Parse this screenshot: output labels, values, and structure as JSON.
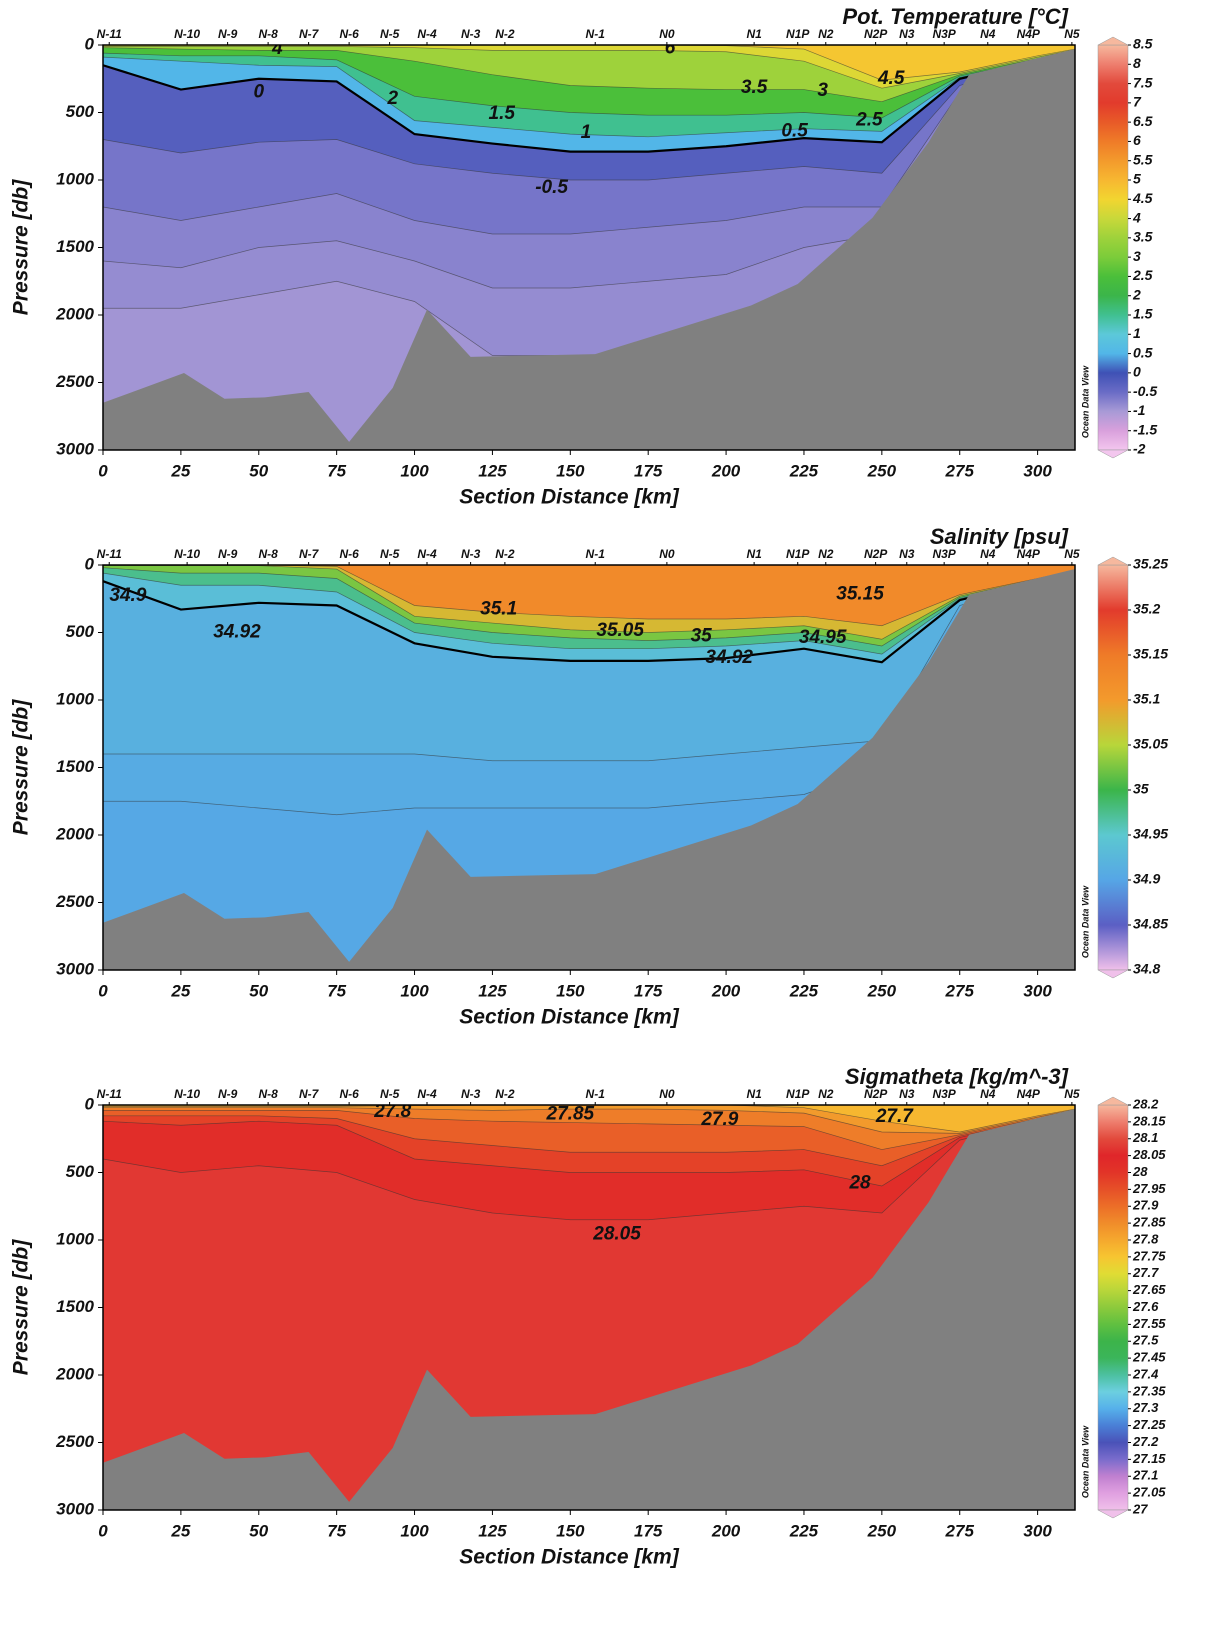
{
  "chart_data": [
    {
      "type": "section",
      "title": "Pot. Temperature [°C]",
      "x_label": "Section Distance [km]",
      "y_label": "Pressure [db]",
      "watermark": "Ocean Data View",
      "xlim": [
        0,
        312
      ],
      "xticks": [
        0,
        25,
        50,
        75,
        100,
        125,
        150,
        175,
        200,
        225,
        250,
        275,
        300
      ],
      "ylim": [
        0,
        3000
      ],
      "yticks": [
        0,
        500,
        1000,
        1500,
        2000,
        2500,
        3000
      ],
      "y_reversed": true,
      "zlim": [
        -2,
        8.5
      ],
      "zticks": [
        8.5,
        8,
        7.5,
        7,
        6.5,
        6,
        5.5,
        5,
        4.5,
        4,
        3.5,
        3,
        2.5,
        2,
        1.5,
        1,
        0.5,
        0,
        -0.5,
        -1,
        -1.5,
        -2
      ],
      "colormap": [
        "#f3c6ee",
        "#d9a0dc",
        "#a89ad6",
        "#6a6cc6",
        "#3f51b5",
        "#52b6e8",
        "#5cc8d9",
        "#40c090",
        "#3bb54a",
        "#4bbf3a",
        "#7ccc3a",
        "#9ed23b",
        "#c8d83a",
        "#f2d530",
        "#f7b731",
        "#f39a2c",
        "#ef7b28",
        "#e85a28",
        "#e23b2c",
        "#e24a3c",
        "#ee7e6e",
        "#f6b89e"
      ],
      "stations": {
        "names": [
          "N-11",
          "N-10",
          "N-9",
          "N-8",
          "N-7",
          "N-6",
          "N-5",
          "N-4",
          "N-3",
          "N-2",
          "N-1",
          "N0",
          "N1",
          "N1P",
          "N2",
          "N2P",
          "N3",
          "N3P",
          "N4",
          "N4P",
          "N5"
        ],
        "km": [
          2,
          27,
          40,
          53,
          66,
          79,
          92,
          104,
          118,
          129,
          158,
          181,
          209,
          223,
          232,
          248,
          258,
          270,
          284,
          297,
          311
        ]
      },
      "x_grid": [
        0,
        25,
        50,
        75,
        100,
        125,
        150,
        175,
        200,
        225,
        250,
        275,
        300,
        312
      ],
      "layers": [
        {
          "level": 4.5,
          "depth": [
            0,
            0,
            0,
            0,
            0,
            0,
            0,
            0,
            5,
            30,
            260,
            200,
            80,
            30
          ]
        },
        {
          "level": 4,
          "depth": [
            10,
            10,
            10,
            10,
            20,
            40,
            40,
            40,
            50,
            120,
            320,
            210,
            90,
            35
          ]
        },
        {
          "level": 3,
          "depth": [
            20,
            30,
            40,
            40,
            120,
            220,
            300,
            320,
            330,
            330,
            420,
            220,
            100,
            40
          ]
        },
        {
          "level": 2,
          "depth": [
            60,
            80,
            80,
            110,
            380,
            450,
            500,
            520,
            520,
            500,
            540,
            230,
            110,
            45
          ]
        },
        {
          "level": 1,
          "depth": [
            90,
            120,
            150,
            160,
            560,
            610,
            660,
            680,
            650,
            620,
            640,
            240,
            115,
            48
          ]
        },
        {
          "level": 0,
          "depth": [
            150,
            330,
            250,
            270,
            660,
            730,
            790,
            790,
            750,
            690,
            720,
            250,
            120,
            50
          ]
        },
        {
          "level": -0.5,
          "depth": [
            700,
            800,
            720,
            700,
            880,
            950,
            1000,
            1000,
            950,
            900,
            950,
            300,
            130,
            55
          ]
        },
        {
          "level": -0.7,
          "depth": [
            1200,
            1300,
            1200,
            1100,
            1300,
            1400,
            1400,
            1350,
            1300,
            1200,
            1200,
            350,
            140,
            60
          ]
        },
        {
          "level": -0.8,
          "depth": [
            1600,
            1650,
            1500,
            1450,
            1600,
            1800,
            1800,
            1750,
            1700,
            1500,
            1400,
            400,
            150,
            65
          ]
        },
        {
          "level": -0.9,
          "depth": [
            1950,
            1950,
            1850,
            1750,
            1900,
            2300,
            2300,
            2300,
            2200,
            2000,
            1600,
            450,
            160,
            70
          ]
        }
      ],
      "bold_levels": [
        0
      ],
      "contour_labels": [
        {
          "value": 0,
          "x": 50,
          "p": 350
        },
        {
          "value": 2,
          "x": 93,
          "p": 400
        },
        {
          "value": 1.5,
          "x": 128,
          "p": 510
        },
        {
          "value": 1,
          "x": 155,
          "p": 650
        },
        {
          "value": 0.5,
          "x": 222,
          "p": 640
        },
        {
          "value": 2.5,
          "x": 246,
          "p": 560
        },
        {
          "value": 3,
          "x": 231,
          "p": 340
        },
        {
          "value": 3.5,
          "x": 209,
          "p": 320
        },
        {
          "value": 4.5,
          "x": 253,
          "p": 250
        },
        {
          "value": -0.5,
          "x": 144,
          "p": 1060
        },
        {
          "value": 4,
          "x": 56,
          "p": 30
        },
        {
          "value": 6,
          "x": 182,
          "p": 25
        }
      ],
      "bottom": {
        "km": [
          0,
          26,
          39,
          52,
          66,
          79,
          93,
          104,
          118,
          158,
          208,
          223,
          247,
          265,
          278,
          312
        ],
        "pressure": [
          2650,
          2430,
          2620,
          2610,
          2570,
          2940,
          2540,
          1960,
          2310,
          2290,
          1930,
          1770,
          1280,
          720,
          220,
          30
        ]
      }
    },
    {
      "type": "section",
      "title": "Salinity [psu]",
      "x_label": "Section Distance [km]",
      "y_label": "Pressure [db]",
      "watermark": "Ocean Data View",
      "xlim": [
        0,
        312
      ],
      "xticks": [
        0,
        25,
        50,
        75,
        100,
        125,
        150,
        175,
        200,
        225,
        250,
        275,
        300
      ],
      "ylim": [
        0,
        3000
      ],
      "yticks": [
        0,
        500,
        1000,
        1500,
        2000,
        2500,
        3000
      ],
      "y_reversed": true,
      "zlim": [
        34.8,
        35.25
      ],
      "zticks": [
        35.25,
        35.2,
        35.15,
        35.1,
        35.05,
        35,
        34.95,
        34.9,
        34.85,
        34.8
      ],
      "colormap": [
        "#f0c0ea",
        "#5b5fc4",
        "#56a6e6",
        "#5cc8d0",
        "#3bb54a",
        "#b8d63a",
        "#f39a2c",
        "#ef7b28",
        "#e23b2c",
        "#f6b89e"
      ],
      "stations": {
        "names": [
          "N-11",
          "N-10",
          "N-9",
          "N-8",
          "N-7",
          "N-6",
          "N-5",
          "N-4",
          "N-3",
          "N-2",
          "N-1",
          "N0",
          "N1",
          "N1P",
          "N2",
          "N2P",
          "N3",
          "N3P",
          "N4",
          "N4P",
          "N5"
        ],
        "km": [
          2,
          27,
          40,
          53,
          66,
          79,
          92,
          104,
          118,
          129,
          158,
          181,
          209,
          223,
          232,
          248,
          258,
          270,
          284,
          297,
          311
        ]
      },
      "x_grid": [
        0,
        25,
        50,
        75,
        100,
        125,
        150,
        175,
        200,
        225,
        250,
        275,
        300,
        312
      ],
      "layers": [
        {
          "level": 35.1,
          "depth": [
            0,
            0,
            0,
            10,
            300,
            350,
            380,
            400,
            400,
            380,
            450,
            220,
            100,
            40
          ]
        },
        {
          "level": 35.05,
          "depth": [
            5,
            5,
            5,
            30,
            380,
            430,
            480,
            500,
            480,
            450,
            550,
            230,
            105,
            42
          ]
        },
        {
          "level": 35,
          "depth": [
            20,
            60,
            60,
            100,
            430,
            500,
            540,
            560,
            540,
            500,
            600,
            240,
            110,
            44
          ]
        },
        {
          "level": 34.95,
          "depth": [
            60,
            150,
            150,
            200,
            500,
            580,
            620,
            620,
            600,
            560,
            660,
            250,
            115,
            46
          ]
        },
        {
          "level": 34.92,
          "depth": [
            120,
            330,
            280,
            300,
            580,
            680,
            710,
            710,
            690,
            620,
            720,
            260,
            120,
            48
          ]
        },
        {
          "level": 34.91,
          "depth": [
            1400,
            1400,
            1400,
            1400,
            1400,
            1450,
            1450,
            1450,
            1400,
            1350,
            1300,
            300,
            130,
            50
          ]
        },
        {
          "level": 34.905,
          "depth": [
            1750,
            1750,
            1800,
            1850,
            1800,
            1800,
            1800,
            1800,
            1750,
            1700,
            1500,
            350,
            140,
            55
          ]
        }
      ],
      "bold_levels": [
        34.92
      ],
      "contour_labels": [
        {
          "value": 34.9,
          "x": 8,
          "p": 230
        },
        {
          "value": 34.92,
          "x": 43,
          "p": 500
        },
        {
          "value": 35.1,
          "x": 127,
          "p": 330
        },
        {
          "value": 35.05,
          "x": 166,
          "p": 490
        },
        {
          "value": 35,
          "x": 192,
          "p": 530
        },
        {
          "value": 34.92,
          "x": 201,
          "p": 690
        },
        {
          "value": 34.95,
          "x": 231,
          "p": 540
        },
        {
          "value": 35.15,
          "x": 243,
          "p": 220
        }
      ],
      "bottom": {
        "km": [
          0,
          26,
          39,
          52,
          66,
          79,
          93,
          104,
          118,
          158,
          208,
          223,
          247,
          265,
          278,
          312
        ],
        "pressure": [
          2650,
          2430,
          2620,
          2610,
          2570,
          2940,
          2540,
          1960,
          2310,
          2290,
          1930,
          1770,
          1280,
          720,
          220,
          30
        ]
      }
    },
    {
      "type": "section",
      "title": "Sigmatheta [kg/m^-3]",
      "x_label": "Section Distance [km]",
      "y_label": "Pressure [db]",
      "watermark": "Ocean Data View",
      "xlim": [
        0,
        312
      ],
      "xticks": [
        0,
        25,
        50,
        75,
        100,
        125,
        150,
        175,
        200,
        225,
        250,
        275,
        300
      ],
      "ylim": [
        0,
        3000
      ],
      "yticks": [
        0,
        500,
        1000,
        1500,
        2000,
        2500,
        3000
      ],
      "y_reversed": true,
      "zlim": [
        27,
        28.2
      ],
      "zticks": [
        28.2,
        28.15,
        28.1,
        28.05,
        28,
        27.95,
        27.9,
        27.85,
        27.8,
        27.75,
        27.7,
        27.65,
        27.6,
        27.55,
        27.5,
        27.45,
        27.4,
        27.35,
        27.3,
        27.25,
        27.2,
        27.15,
        27.1,
        27.05,
        27
      ],
      "colormap": [
        "#f0c0ea",
        "#e0a0e0",
        "#c080d0",
        "#7a6ccc",
        "#4a52b8",
        "#4a7fd6",
        "#56b0ea",
        "#6ccfe0",
        "#4cc0a0",
        "#3bb55a",
        "#3cb44a",
        "#60c040",
        "#8cca3c",
        "#b8d63a",
        "#e0dc34",
        "#f7c531",
        "#f5a82e",
        "#f08c2a",
        "#ec6e28",
        "#e65028",
        "#e23428",
        "#e0262a",
        "#e24a3c",
        "#ee7e6e",
        "#f6b89e"
      ],
      "stations": {
        "names": [
          "N-11",
          "N-10",
          "N-9",
          "N-8",
          "N-7",
          "N-6",
          "N-5",
          "N-4",
          "N-3",
          "N-2",
          "N-1",
          "N0",
          "N1",
          "N1P",
          "N2",
          "N2P",
          "N3",
          "N3P",
          "N4",
          "N4P",
          "N5"
        ],
        "km": [
          2,
          27,
          40,
          53,
          66,
          79,
          92,
          104,
          118,
          129,
          158,
          181,
          209,
          223,
          232,
          248,
          258,
          270,
          284,
          297,
          311
        ]
      },
      "x_grid": [
        0,
        25,
        50,
        75,
        100,
        125,
        150,
        175,
        200,
        225,
        250,
        275,
        300,
        312
      ],
      "layers": [
        {
          "level": 27.8,
          "depth": [
            10,
            10,
            10,
            10,
            5,
            0,
            0,
            0,
            0,
            20,
            120,
            200,
            80,
            30
          ]
        },
        {
          "level": 27.85,
          "depth": [
            20,
            20,
            20,
            20,
            30,
            40,
            30,
            30,
            40,
            60,
            200,
            210,
            90,
            35
          ]
        },
        {
          "level": 27.9,
          "depth": [
            40,
            40,
            40,
            40,
            100,
            120,
            130,
            140,
            150,
            160,
            330,
            220,
            100,
            40
          ]
        },
        {
          "level": 27.95,
          "depth": [
            80,
            80,
            80,
            100,
            250,
            300,
            350,
            350,
            350,
            330,
            450,
            230,
            110,
            45
          ]
        },
        {
          "level": 28,
          "depth": [
            120,
            150,
            120,
            150,
            400,
            450,
            500,
            500,
            500,
            480,
            600,
            240,
            115,
            48
          ]
        },
        {
          "level": 28.05,
          "depth": [
            400,
            500,
            450,
            500,
            700,
            800,
            850,
            850,
            800,
            750,
            800,
            260,
            120,
            50
          ]
        }
      ],
      "contour_labels": [
        {
          "value": 27.85,
          "x": 150,
          "p": 70
        },
        {
          "value": 27.9,
          "x": 198,
          "p": 110
        },
        {
          "value": 27.7,
          "x": 254,
          "p": 90
        },
        {
          "value": 28,
          "x": 243,
          "p": 580
        },
        {
          "value": 28.05,
          "x": 165,
          "p": 960
        },
        {
          "value": 27.8,
          "x": 93,
          "p": 50
        }
      ],
      "bottom": {
        "km": [
          0,
          26,
          39,
          52,
          66,
          79,
          93,
          104,
          118,
          158,
          208,
          223,
          247,
          265,
          278,
          312
        ],
        "pressure": [
          2650,
          2430,
          2620,
          2610,
          2570,
          2940,
          2540,
          1960,
          2310,
          2290,
          1930,
          1770,
          1280,
          720,
          220,
          30
        ]
      }
    }
  ]
}
